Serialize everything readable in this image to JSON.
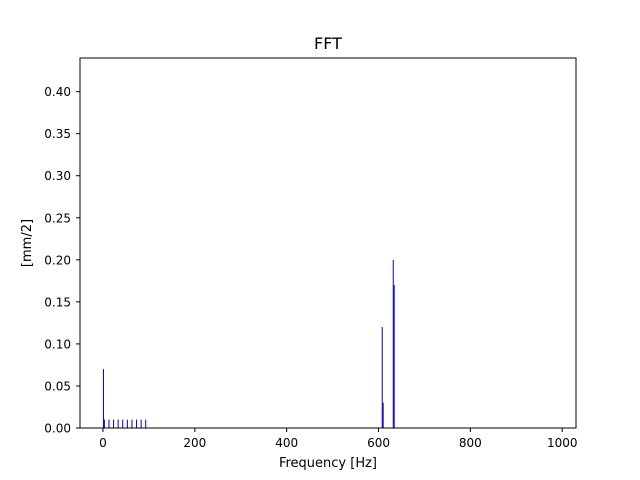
{
  "chart_data": {
    "type": "bar",
    "title": "FFT",
    "xlabel": "Frequency [Hz]",
    "ylabel": "[mm/2]",
    "xlim": [
      -50,
      1030
    ],
    "ylim": [
      0,
      0.44
    ],
    "xticks": [
      0,
      200,
      400,
      600,
      800,
      1000
    ],
    "yticks": [
      0.0,
      0.05,
      0.1,
      0.15,
      0.2,
      0.25,
      0.3,
      0.35,
      0.4
    ],
    "grid": false,
    "legend": "none",
    "bar_width_hz": 2,
    "series": [
      {
        "color": "#0000cc",
        "x": [
          1,
          3,
          13,
          23,
          33,
          43,
          53,
          63,
          73,
          83,
          93,
          608,
          610,
          632,
          634
        ],
        "values": [
          0.07,
          0.01,
          0.01,
          0.01,
          0.01,
          0.01,
          0.01,
          0.01,
          0.01,
          0.01,
          0.01,
          0.12,
          0.03,
          0.2,
          0.17
        ]
      }
    ]
  }
}
